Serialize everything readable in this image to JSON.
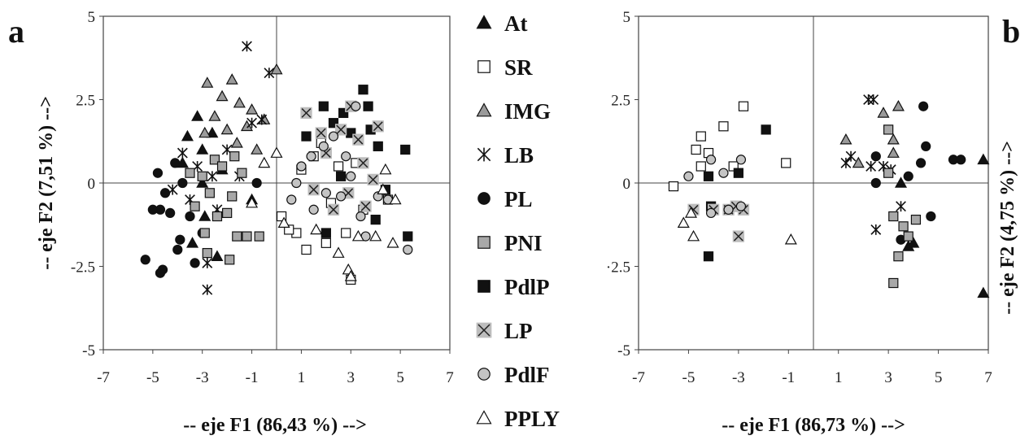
{
  "chart_data": [
    {
      "type": "scatter",
      "panel": "a",
      "xlabel": "-- eje F1 (86,43 %) -->",
      "ylabel": "-- eje F2 (7,51 %) -->",
      "xlim": [
        -7,
        7
      ],
      "ylim": [
        -5,
        5
      ],
      "xticks": [
        "-7",
        "-5",
        "-3",
        "-1",
        "1",
        "3",
        "5",
        "7"
      ],
      "yticks": [
        "5",
        "2.5",
        "0",
        "-2.5",
        "-5"
      ],
      "grid": false,
      "series": [
        {
          "name": "At",
          "points": [
            [
              -3.2,
              2.0
            ],
            [
              -3.6,
              1.4
            ],
            [
              -3.0,
              1.0
            ],
            [
              -2.6,
              1.5
            ],
            [
              -3.8,
              0.6
            ],
            [
              -2.2,
              0.4
            ],
            [
              -3.4,
              -1.8
            ],
            [
              -2.4,
              -2.2
            ],
            [
              -2.9,
              -1.0
            ],
            [
              -1.0,
              -0.5
            ],
            [
              -3.0,
              0.0
            ]
          ]
        },
        {
          "name": "SR",
          "points": [
            [
              1.2,
              -2.0
            ],
            [
              2.0,
              -1.8
            ],
            [
              3.0,
              -2.9
            ],
            [
              0.8,
              -1.5
            ],
            [
              1.5,
              0.8
            ],
            [
              2.5,
              0.5
            ],
            [
              4.5,
              -0.5
            ],
            [
              0.5,
              -1.4
            ],
            [
              3.5,
              -0.8
            ],
            [
              1.8,
              1.2
            ],
            [
              2.8,
              -1.5
            ],
            [
              0.2,
              -1.0
            ],
            [
              1.0,
              0.4
            ],
            [
              3.2,
              0.6
            ],
            [
              2.2,
              -0.6
            ]
          ]
        },
        {
          "name": "IMG",
          "points": [
            [
              -2.8,
              3.0
            ],
            [
              -1.8,
              3.1
            ],
            [
              -2.2,
              2.6
            ],
            [
              -1.5,
              2.4
            ],
            [
              -1.0,
              2.2
            ],
            [
              -2.5,
              2.0
            ],
            [
              -0.5,
              1.9
            ],
            [
              -2.0,
              1.6
            ],
            [
              -1.6,
              1.2
            ],
            [
              0.0,
              3.4
            ],
            [
              -0.8,
              1.0
            ],
            [
              -2.9,
              1.5
            ],
            [
              -1.2,
              1.7
            ]
          ]
        },
        {
          "name": "LB",
          "points": [
            [
              -1.2,
              4.1
            ],
            [
              -0.3,
              3.3
            ],
            [
              -2.8,
              -3.2
            ],
            [
              -2.8,
              -2.4
            ],
            [
              -3.2,
              0.5
            ],
            [
              -1.0,
              1.8
            ],
            [
              -2.0,
              1.0
            ],
            [
              -3.5,
              -0.5
            ],
            [
              -1.5,
              0.2
            ],
            [
              -2.4,
              -0.8
            ],
            [
              -4.2,
              -0.2
            ],
            [
              -3.8,
              0.9
            ],
            [
              -0.6,
              1.9
            ],
            [
              -2.6,
              0.2
            ]
          ]
        },
        {
          "name": "PL",
          "points": [
            [
              -5.3,
              -2.3
            ],
            [
              -4.6,
              -2.6
            ],
            [
              -4.0,
              -2.0
            ],
            [
              -3.3,
              -2.4
            ],
            [
              -3.0,
              -1.5
            ],
            [
              -3.9,
              -1.7
            ],
            [
              -4.7,
              -0.8
            ],
            [
              -5.0,
              -0.8
            ],
            [
              -4.5,
              -0.3
            ],
            [
              -4.1,
              0.6
            ],
            [
              -3.8,
              0.0
            ],
            [
              -4.8,
              0.3
            ],
            [
              -3.5,
              -1.0
            ],
            [
              -0.8,
              0.0
            ],
            [
              -4.3,
              -0.9
            ],
            [
              -4.7,
              -2.7
            ]
          ]
        },
        {
          "name": "PNI",
          "points": [
            [
              -2.8,
              -2.1
            ],
            [
              -1.9,
              -2.3
            ],
            [
              -1.2,
              -1.6
            ],
            [
              -0.7,
              -1.6
            ],
            [
              -1.6,
              -1.6
            ],
            [
              -2.4,
              -1.0
            ],
            [
              -3.0,
              0.2
            ],
            [
              -2.5,
              0.7
            ],
            [
              -2.2,
              0.5
            ],
            [
              -1.8,
              -0.4
            ],
            [
              -3.3,
              -0.7
            ],
            [
              -1.4,
              0.3
            ],
            [
              -2.0,
              -0.9
            ],
            [
              -2.7,
              -0.3
            ],
            [
              -1.7,
              0.8
            ],
            [
              -3.5,
              0.3
            ],
            [
              -2.9,
              -1.5
            ]
          ]
        },
        {
          "name": "PdlP",
          "points": [
            [
              3.5,
              2.8
            ],
            [
              3.8,
              1.6
            ],
            [
              1.9,
              2.3
            ],
            [
              2.3,
              1.8
            ],
            [
              3.0,
              1.5
            ],
            [
              1.2,
              1.4
            ],
            [
              4.1,
              1.1
            ],
            [
              5.2,
              1.0
            ],
            [
              2.6,
              0.2
            ],
            [
              4.4,
              -0.2
            ],
            [
              4.0,
              -1.1
            ],
            [
              5.3,
              -1.6
            ],
            [
              2.0,
              -1.5
            ],
            [
              3.7,
              2.3
            ],
            [
              2.7,
              2.1
            ]
          ]
        },
        {
          "name": "LP",
          "points": [
            [
              1.2,
              2.1
            ],
            [
              3.0,
              2.3
            ],
            [
              4.1,
              1.7
            ],
            [
              2.6,
              1.6
            ],
            [
              3.3,
              1.3
            ],
            [
              2.0,
              0.9
            ],
            [
              3.5,
              0.6
            ],
            [
              1.5,
              -0.2
            ],
            [
              2.9,
              -0.3
            ],
            [
              3.9,
              0.1
            ],
            [
              2.3,
              -0.8
            ],
            [
              1.8,
              1.5
            ],
            [
              3.6,
              -0.7
            ]
          ]
        },
        {
          "name": "PdlF",
          "points": [
            [
              3.2,
              2.3
            ],
            [
              2.3,
              1.4
            ],
            [
              1.4,
              0.8
            ],
            [
              0.8,
              0.0
            ],
            [
              1.5,
              -0.8
            ],
            [
              2.6,
              -0.4
            ],
            [
              3.4,
              -1.0
            ],
            [
              4.1,
              -0.4
            ],
            [
              4.5,
              -0.5
            ],
            [
              3.6,
              -1.6
            ],
            [
              5.3,
              -2.0
            ],
            [
              2.8,
              0.8
            ],
            [
              1.0,
              0.5
            ],
            [
              2.0,
              -0.3
            ],
            [
              0.6,
              -0.5
            ],
            [
              3.0,
              0.2
            ],
            [
              1.9,
              1.1
            ]
          ]
        },
        {
          "name": "PPLY",
          "points": [
            [
              2.9,
              -2.6
            ],
            [
              2.5,
              -2.1
            ],
            [
              3.3,
              -1.6
            ],
            [
              4.7,
              -1.8
            ],
            [
              4.0,
              -1.6
            ],
            [
              4.4,
              0.4
            ],
            [
              4.3,
              -0.2
            ],
            [
              4.8,
              -0.5
            ],
            [
              0.0,
              0.9
            ],
            [
              -0.5,
              0.6
            ],
            [
              -1.0,
              -0.6
            ],
            [
              3.0,
              -2.8
            ],
            [
              1.6,
              -1.4
            ],
            [
              0.3,
              -1.2
            ]
          ]
        }
      ]
    },
    {
      "type": "scatter",
      "panel": "b",
      "xlabel": "-- eje F1 (86,73 %) -->",
      "ylabel": "-- eje F2 (4,75 %) -->",
      "xlim": [
        -7,
        7
      ],
      "ylim": [
        -5,
        5
      ],
      "xticks": [
        "-7",
        "-5",
        "-3",
        "-1",
        "1",
        "3",
        "5",
        "7"
      ],
      "yticks": [
        "5",
        "2.5",
        "0",
        "·2.5",
        "-5"
      ],
      "grid": false,
      "series": [
        {
          "name": "At",
          "points": [
            [
              6.8,
              0.7
            ],
            [
              6.8,
              -3.3
            ],
            [
              3.5,
              0.0
            ],
            [
              3.8,
              -1.9
            ],
            [
              4.0,
              -1.8
            ]
          ]
        },
        {
          "name": "SR",
          "points": [
            [
              -5.6,
              -0.1
            ],
            [
              -4.5,
              1.4
            ],
            [
              -4.7,
              1.0
            ],
            [
              -4.2,
              0.9
            ],
            [
              -3.6,
              1.7
            ],
            [
              -2.8,
              2.3
            ],
            [
              -1.1,
              0.6
            ],
            [
              -4.5,
              0.5
            ],
            [
              -3.2,
              0.5
            ]
          ]
        },
        {
          "name": "IMG",
          "points": [
            [
              1.3,
              1.3
            ],
            [
              2.8,
              2.1
            ],
            [
              3.4,
              2.3
            ],
            [
              3.2,
              0.9
            ],
            [
              1.8,
              0.6
            ],
            [
              3.2,
              1.3
            ]
          ]
        },
        {
          "name": "LB",
          "points": [
            [
              2.2,
              2.5
            ],
            [
              2.4,
              2.5
            ],
            [
              1.5,
              0.8
            ],
            [
              2.3,
              0.5
            ],
            [
              1.3,
              0.6
            ],
            [
              2.8,
              0.5
            ],
            [
              3.5,
              -0.7
            ],
            [
              2.5,
              -1.4
            ],
            [
              3.1,
              0.4
            ]
          ]
        },
        {
          "name": "PL",
          "points": [
            [
              4.4,
              2.3
            ],
            [
              4.5,
              1.1
            ],
            [
              5.6,
              0.7
            ],
            [
              5.9,
              0.7
            ],
            [
              4.3,
              0.6
            ],
            [
              3.8,
              0.2
            ],
            [
              2.5,
              0.8
            ],
            [
              2.5,
              0.0
            ],
            [
              4.7,
              -1.0
            ],
            [
              3.5,
              -1.7
            ]
          ]
        },
        {
          "name": "PNI",
          "points": [
            [
              3.0,
              1.6
            ],
            [
              3.0,
              0.3
            ],
            [
              3.2,
              -1.0
            ],
            [
              3.4,
              -2.2
            ],
            [
              3.2,
              -3.0
            ],
            [
              4.1,
              -1.1
            ],
            [
              3.8,
              -1.6
            ],
            [
              3.6,
              -1.3
            ]
          ]
        },
        {
          "name": "PdlP",
          "points": [
            [
              -1.9,
              1.6
            ],
            [
              -3.0,
              0.3
            ],
            [
              -4.2,
              -2.2
            ],
            [
              -4.2,
              0.2
            ],
            [
              -4.1,
              -0.7
            ]
          ]
        },
        {
          "name": "LP",
          "points": [
            [
              -4.8,
              -0.8
            ],
            [
              -4.0,
              -0.8
            ],
            [
              -3.4,
              -0.8
            ],
            [
              -2.8,
              -0.8
            ],
            [
              -3.0,
              -1.6
            ],
            [
              -3.1,
              -0.7
            ]
          ]
        },
        {
          "name": "PdlF",
          "points": [
            [
              -2.9,
              0.7
            ],
            [
              -3.6,
              0.3
            ],
            [
              -4.1,
              0.7
            ],
            [
              -5.0,
              0.2
            ],
            [
              -4.1,
              -0.9
            ],
            [
              -2.9,
              -0.7
            ],
            [
              -3.4,
              -0.8
            ]
          ]
        },
        {
          "name": "PPLY",
          "points": [
            [
              -5.2,
              -1.2
            ],
            [
              -4.8,
              -1.6
            ],
            [
              -4.9,
              -0.9
            ],
            [
              -0.9,
              -1.7
            ]
          ]
        }
      ]
    }
  ],
  "legend": [
    {
      "label": "At",
      "marker": "triangle",
      "fill": "#111111"
    },
    {
      "label": "SR",
      "marker": "square",
      "fill": "#ffffff"
    },
    {
      "label": "IMG",
      "marker": "triangle",
      "fill": "#9a9a9a"
    },
    {
      "label": "LB",
      "marker": "asterisk",
      "fill": "#111111"
    },
    {
      "label": "PL",
      "marker": "circle",
      "fill": "#111111"
    },
    {
      "label": "PNI",
      "marker": "square",
      "fill": "#a8a8a8"
    },
    {
      "label": "PdlP",
      "marker": "square",
      "fill": "#111111"
    },
    {
      "label": "LP",
      "marker": "xsquare",
      "fill": "#bdbdbd"
    },
    {
      "label": "PdlF",
      "marker": "circle",
      "fill": "#c4c4c4"
    },
    {
      "label": "PPLY",
      "marker": "triangle",
      "fill": "#ffffff"
    }
  ]
}
